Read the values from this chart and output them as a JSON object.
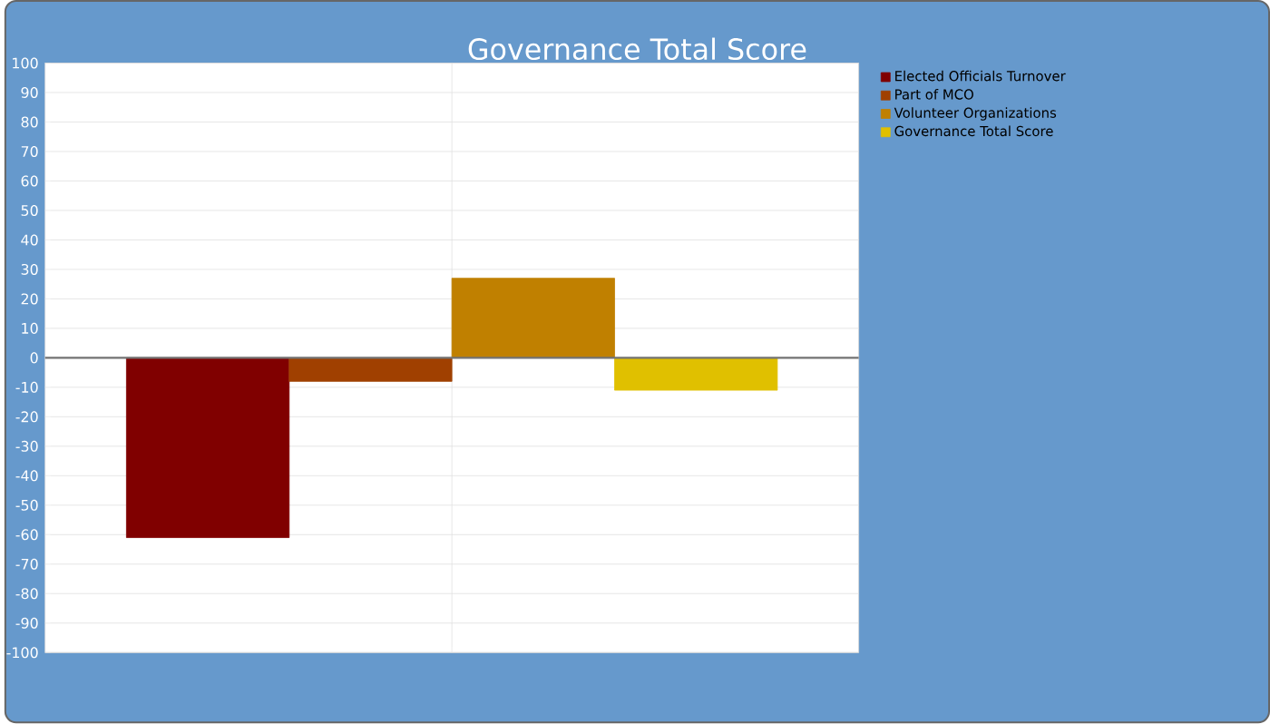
{
  "chart_data": {
    "type": "bar",
    "title": "Governance Total Score",
    "categories": [
      null
    ],
    "series": [
      {
        "name": "Elected Officials Turnover",
        "color": "#800000",
        "values": [
          -61
        ]
      },
      {
        "name": "Part of MCO",
        "color": "#a04000",
        "values": [
          -8
        ]
      },
      {
        "name": "Volunteer Organizations",
        "color": "#c08000",
        "values": [
          27
        ]
      },
      {
        "name": "Governance Total Score",
        "color": "#e0c000",
        "values": [
          -11
        ]
      }
    ],
    "ylim": [
      -100,
      100
    ],
    "yticks": [
      -100,
      -90,
      -80,
      -70,
      -60,
      -50,
      -40,
      -30,
      -20,
      -10,
      0,
      10,
      20,
      30,
      40,
      50,
      60,
      70,
      80,
      90,
      100
    ],
    "grid": true,
    "legend": "top right"
  }
}
